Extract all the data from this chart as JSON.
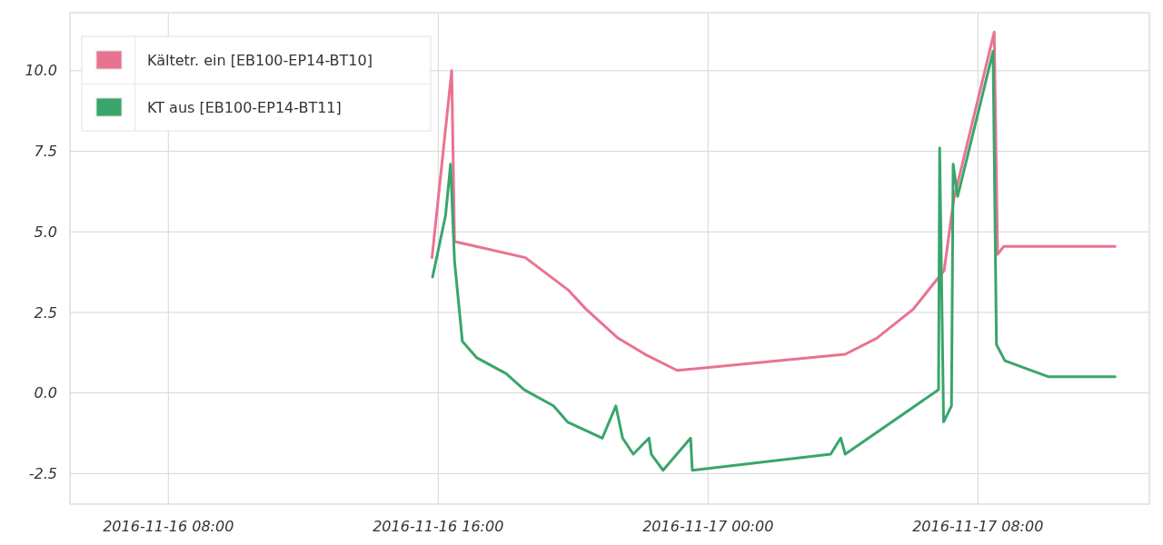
{
  "chart_data": {
    "type": "line",
    "xlim": [
      "2016-11-16T05:05",
      "2016-11-17T13:05"
    ],
    "xticks": [
      {
        "value": "2016-11-16T08:00",
        "label": "2016-11-16 08:00"
      },
      {
        "value": "2016-11-16T16:00",
        "label": "2016-11-16 16:00"
      },
      {
        "value": "2016-11-17T00:00",
        "label": "2016-11-17 00:00"
      },
      {
        "value": "2016-11-17T08:00",
        "label": "2016-11-17 08:00"
      }
    ],
    "ylim": [
      -3.45,
      11.8
    ],
    "yticks": [
      {
        "value": -2.5,
        "label": "-2.5"
      },
      {
        "value": 0,
        "label": "0.0"
      },
      {
        "value": 2.5,
        "label": "2.5"
      },
      {
        "value": 5,
        "label": "5.0"
      },
      {
        "value": 7.5,
        "label": "7.5"
      },
      {
        "value": 10,
        "label": "10.0"
      }
    ],
    "grid": true,
    "legend": "top left",
    "marker": "none",
    "line_style": "solid",
    "series": [
      {
        "name": "Kältetr. ein [EB100-EP14-BT10]",
        "color": "#e9738f",
        "x": [
          "2016-11-16T15:49",
          "2016-11-16T16:24",
          "2016-11-16T16:29",
          "2016-11-16T18:35",
          "2016-11-16T19:51",
          "2016-11-16T20:23",
          "2016-11-16T21:20",
          "2016-11-16T22:08",
          "2016-11-16T23:05",
          "2016-11-17T04:04",
          "2016-11-17T05:00",
          "2016-11-17T06:05",
          "2016-11-17T06:37",
          "2016-11-17T07:00",
          "2016-11-17T07:17",
          "2016-11-17T08:29",
          "2016-11-17T08:35",
          "2016-11-17T08:46",
          "2016-11-17T12:04"
        ],
        "values": [
          4.2,
          10.0,
          4.7,
          4.2,
          3.2,
          2.6,
          1.7,
          1.2,
          0.7,
          1.2,
          1.7,
          2.6,
          3.3,
          3.8,
          6.0,
          11.2,
          4.3,
          4.55,
          4.55
        ]
      },
      {
        "name": "KT aus [EB100-EP14-BT11]",
        "color": "#3aa56b",
        "x": [
          "2016-11-16T15:50",
          "2016-11-16T16:13",
          "2016-11-16T16:22",
          "2016-11-16T16:29",
          "2016-11-16T16:43",
          "2016-11-16T17:08",
          "2016-11-16T18:01",
          "2016-11-16T18:33",
          "2016-11-16T19:25",
          "2016-11-16T19:50",
          "2016-11-16T20:52",
          "2016-11-16T21:16",
          "2016-11-16T21:28",
          "2016-11-16T21:47",
          "2016-11-16T22:15",
          "2016-11-16T22:19",
          "2016-11-16T22:40",
          "2016-11-16T23:29",
          "2016-11-16T23:32",
          "2016-11-17T03:38",
          "2016-11-17T03:56",
          "2016-11-17T04:04",
          "2016-11-17T06:50",
          "2016-11-17T06:52",
          "2016-11-17T06:59",
          "2016-11-17T07:13",
          "2016-11-17T07:16",
          "2016-11-17T07:24",
          "2016-11-17T08:27",
          "2016-11-17T08:33",
          "2016-11-17T08:48",
          "2016-11-17T10:06",
          "2016-11-17T12:04"
        ],
        "values": [
          3.6,
          5.5,
          7.1,
          4.1,
          1.6,
          1.1,
          0.6,
          0.1,
          -0.4,
          -0.9,
          -1.4,
          -0.4,
          -1.4,
          -1.9,
          -1.4,
          -1.9,
          -2.4,
          -1.4,
          -2.4,
          -1.9,
          -1.4,
          -1.9,
          0.1,
          7.6,
          -0.9,
          -0.4,
          7.1,
          6.1,
          10.6,
          1.5,
          1.0,
          0.5,
          0.5
        ]
      }
    ]
  }
}
